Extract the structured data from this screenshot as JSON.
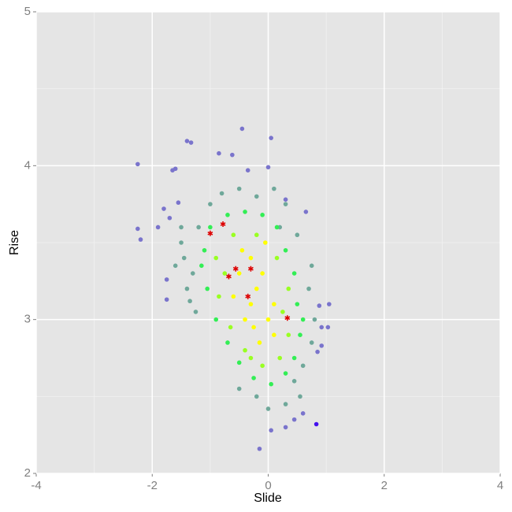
{
  "chart_data": {
    "type": "scatter",
    "xlabel": "Slide",
    "ylabel": "Rise",
    "xlim": [
      -4,
      4
    ],
    "ylim": [
      2,
      5
    ],
    "xticks": [
      -4,
      -2,
      0,
      2,
      4
    ],
    "yticks": [
      2,
      3,
      4,
      5
    ],
    "xminor": [
      -3,
      -1,
      1,
      3
    ],
    "yminor": [
      2.5,
      3.5,
      4.5
    ],
    "grid": true,
    "series": [
      {
        "color": "#7a74cc",
        "x": [
          -2.25,
          -2.25,
          -2.2,
          -1.75,
          -1.65,
          -1.6,
          -1.4,
          -1.33,
          -0.85,
          -0.45,
          0.05,
          -0.62,
          -0.35,
          0.0,
          0.3,
          0.65,
          0.88,
          1.05,
          0.92,
          1.03,
          0.92,
          0.85,
          0.6,
          0.45,
          0.05,
          -0.15,
          0.3,
          -1.8,
          -1.7,
          -1.55,
          -1.9,
          -1.75
        ],
        "values": [
          4.01,
          3.59,
          3.52,
          3.13,
          3.97,
          3.98,
          4.16,
          4.15,
          4.08,
          4.24,
          4.18,
          4.07,
          3.97,
          3.99,
          3.78,
          3.7,
          3.09,
          3.1,
          2.95,
          2.95,
          2.83,
          2.79,
          2.39,
          2.35,
          2.28,
          2.16,
          2.3,
          3.72,
          3.66,
          3.76,
          3.6,
          3.26
        ]
      },
      {
        "color": "#4411ee",
        "x": [
          0.83
        ],
        "values": [
          2.32
        ]
      },
      {
        "color": "#6fa89a",
        "x": [
          -1.5,
          -1.45,
          -1.6,
          -1.3,
          -1.4,
          -1.35,
          -1.2,
          -1.0,
          -0.8,
          -0.5,
          -0.2,
          0.1,
          0.3,
          0.2,
          0.5,
          0.75,
          0.7,
          0.75,
          0.6,
          0.55,
          0.3,
          0.0,
          -0.2,
          -0.5,
          -1.25,
          -1.5,
          0.8,
          0.45
        ],
        "values": [
          3.5,
          3.4,
          3.35,
          3.3,
          3.2,
          3.12,
          3.6,
          3.75,
          3.82,
          3.85,
          3.8,
          3.85,
          3.75,
          3.6,
          3.55,
          3.35,
          3.2,
          2.85,
          2.7,
          2.5,
          2.45,
          2.42,
          2.5,
          2.55,
          3.05,
          3.6,
          3.0,
          2.6
        ]
      },
      {
        "color": "#33ee55",
        "x": [
          -1.1,
          -1.0,
          -0.7,
          -0.4,
          -0.1,
          0.15,
          0.3,
          0.45,
          0.5,
          0.55,
          0.45,
          0.3,
          0.05,
          -0.25,
          -0.5,
          -0.7,
          -0.9,
          -1.05,
          -1.15,
          0.6
        ],
        "values": [
          3.45,
          3.6,
          3.68,
          3.7,
          3.68,
          3.6,
          3.45,
          3.3,
          3.1,
          2.9,
          2.75,
          2.65,
          2.58,
          2.62,
          2.72,
          2.85,
          3.0,
          3.2,
          3.35,
          3.0
        ]
      },
      {
        "color": "#99ff22",
        "x": [
          -0.9,
          -0.6,
          -0.2,
          0.15,
          0.35,
          0.35,
          0.2,
          -0.1,
          -0.4,
          -0.65,
          -0.85,
          -0.75,
          0.25,
          -0.3
        ],
        "values": [
          3.4,
          3.55,
          3.55,
          3.4,
          3.2,
          2.9,
          2.75,
          2.7,
          2.8,
          2.95,
          3.15,
          3.3,
          3.05,
          2.75
        ]
      },
      {
        "color": "#ffff00",
        "x": [
          -0.5,
          -0.3,
          -0.1,
          0.1,
          0.1,
          -0.15,
          -0.4,
          -0.6,
          -0.3,
          -0.2,
          0.0,
          -0.45,
          -0.05,
          -0.25
        ],
        "values": [
          3.3,
          3.4,
          3.3,
          3.1,
          2.9,
          2.85,
          3.0,
          3.15,
          3.1,
          3.2,
          3.0,
          3.45,
          3.5,
          2.95
        ]
      }
    ],
    "highlights": {
      "color": "#dd0000",
      "x": [
        -1.0,
        -0.78,
        -0.56,
        -0.68,
        -0.3,
        -0.35,
        0.33
      ],
      "values": [
        3.56,
        3.62,
        3.33,
        3.28,
        3.33,
        3.15,
        3.01
      ]
    }
  }
}
